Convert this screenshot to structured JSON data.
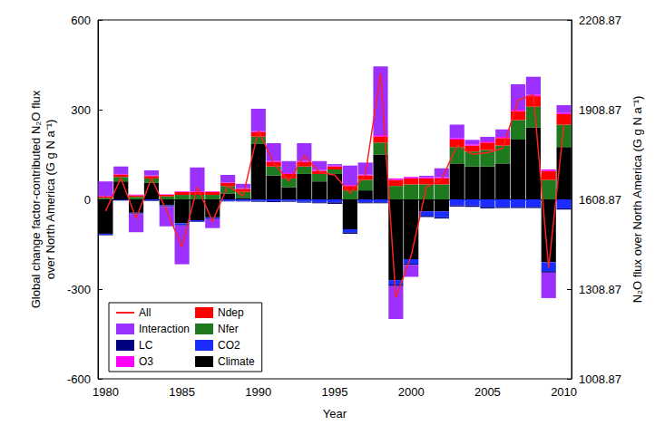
{
  "chart_data": {
    "type": "bar",
    "stacked": true,
    "grid": false,
    "legend": "lower left",
    "x_label": "Year",
    "y_label": "Global change factor-contributed N₂O flux over North America (G g N a⁻¹)",
    "y2_label": "N₂O flux over North America (G g N a⁻¹)",
    "categories": [
      1980,
      null,
      null,
      null,
      null,
      1985,
      null,
      null,
      null,
      null,
      1990,
      null,
      null,
      null,
      null,
      1995,
      null,
      null,
      null,
      null,
      2000,
      null,
      null,
      null,
      null,
      2005,
      null,
      null,
      null,
      null,
      2010
    ],
    "ylim": [
      -600,
      600
    ],
    "yticks": [
      -600,
      -300,
      0,
      300,
      600
    ],
    "y2lim": [
      1008.87,
      2208.87
    ],
    "y2ticks": [
      1008.87,
      1308.87,
      1608.87,
      1908.87,
      2208.87
    ],
    "series": [
      {
        "name": "Climate",
        "color": "#000000",
        "values": [
          -115,
          60,
          -45,
          55,
          -20,
          -80,
          -70,
          -60,
          20,
          5,
          185,
          80,
          40,
          85,
          60,
          85,
          -100,
          30,
          150,
          -270,
          -200,
          -40,
          -40,
          120,
          110,
          110,
          120,
          200,
          240,
          -210,
          175
        ]
      },
      {
        "name": "CO2",
        "color": "#1a2cff",
        "values": [
          -3,
          -2,
          -3,
          -3,
          -3,
          -5,
          -4,
          -4,
          -5,
          -5,
          -5,
          -6,
          -5,
          -8,
          -10,
          -10,
          -10,
          -10,
          -10,
          -15,
          -15,
          -15,
          -20,
          -20,
          -20,
          -25,
          -25,
          -25,
          -25,
          -30,
          -30
        ]
      },
      {
        "name": "Nfer",
        "color": "#1f7a1f",
        "values": [
          5,
          15,
          8,
          15,
          10,
          15,
          15,
          15,
          25,
          20,
          25,
          30,
          30,
          25,
          25,
          15,
          30,
          35,
          40,
          45,
          50,
          50,
          50,
          55,
          50,
          55,
          60,
          65,
          70,
          65,
          75
        ]
      },
      {
        "name": "Ndep",
        "color": "#ff0000",
        "values": [
          5,
          8,
          6,
          8,
          5,
          10,
          10,
          10,
          10,
          10,
          15,
          15,
          15,
          15,
          10,
          10,
          15,
          15,
          20,
          20,
          20,
          20,
          20,
          25,
          20,
          25,
          25,
          30,
          35,
          30,
          35
        ]
      },
      {
        "name": "O3",
        "color": "#ff00ff",
        "values": [
          2,
          2,
          2,
          2,
          2,
          2,
          2,
          2,
          2,
          2,
          3,
          3,
          3,
          3,
          3,
          3,
          3,
          3,
          5,
          5,
          5,
          4,
          4,
          5,
          4,
          4,
          4,
          5,
          5,
          5,
          5
        ]
      },
      {
        "name": "LC",
        "color": "#000080",
        "values": [
          -2,
          -2,
          -2,
          -2,
          -2,
          -2,
          -2,
          -2,
          -2,
          -2,
          -3,
          -3,
          -3,
          -3,
          -3,
          -5,
          -5,
          -3,
          -3,
          -5,
          -4,
          -4,
          -4,
          -4,
          -5,
          -5,
          -4,
          -4,
          -4,
          -5,
          -4
        ]
      },
      {
        "name": "Interaction",
        "color": "#9b30ff",
        "values": [
          48,
          25,
          -60,
          17,
          -65,
          -130,
          80,
          -30,
          25,
          15,
          75,
          60,
          40,
          60,
          30,
          5,
          65,
          40,
          230,
          -110,
          -40,
          5,
          30,
          45,
          15,
          15,
          25,
          85,
          60,
          -85,
          25
        ]
      },
      {
        "name": "All",
        "type": "line",
        "axis": "y2",
        "color": "#ff2020",
        "values": [
          1570,
          1680,
          1545,
          1680,
          1570,
          1450,
          1650,
          1535,
          1655,
          1620,
          1840,
          1730,
          1670,
          1755,
          1700,
          1690,
          1630,
          1690,
          2030,
          1280,
          1420,
          1650,
          1675,
          1790,
          1760,
          1765,
          1780,
          1940,
          1960,
          1380,
          1860
        ]
      }
    ]
  }
}
